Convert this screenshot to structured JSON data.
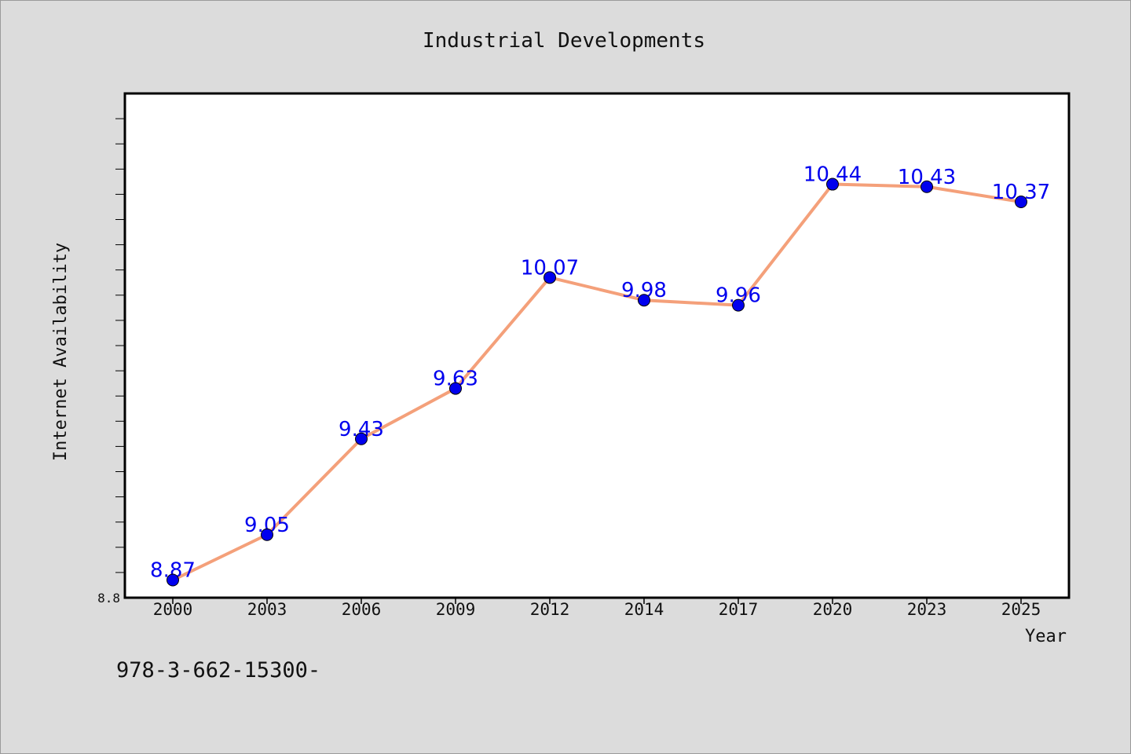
{
  "chart_data": {
    "type": "line",
    "title": "Industrial Developments",
    "xlabel": "Year",
    "ylabel": "Internet Availability",
    "categories": [
      "2000",
      "2003",
      "2006",
      "2009",
      "2012",
      "2014",
      "2017",
      "2020",
      "2023",
      "2025"
    ],
    "series": [
      {
        "values": [
          8.87,
          9.05,
          9.43,
          9.63,
          10.07,
          9.98,
          9.96,
          10.44,
          10.43,
          10.37
        ],
        "line_color": "#f4a07a",
        "marker_color": "#0000ee"
      }
    ],
    "data_labels": [
      "8.87",
      "9.05",
      "9.43",
      "9.63",
      "10.07",
      "9.98",
      "9.96",
      "10.44",
      "10.43",
      "10.37"
    ],
    "ylim": [
      8.8,
      10.8
    ],
    "ytick_labels": [
      "8.8"
    ],
    "grid": false,
    "legend": "none"
  },
  "footer": {
    "text": "978-3-662-15300-"
  }
}
